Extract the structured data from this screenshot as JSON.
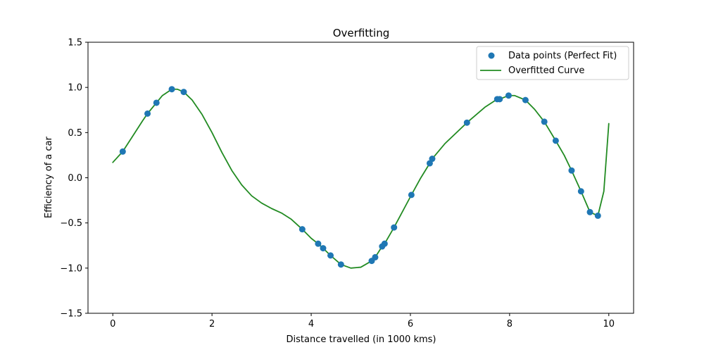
{
  "chart_data": {
    "type": "scatter",
    "title": "Overfitting",
    "xlabel": "Distance travelled (in 1000 kms)",
    "ylabel": "Efficiency of a car",
    "xlim": [
      -0.5,
      10.5
    ],
    "ylim": [
      -1.5,
      1.5
    ],
    "xticks": [
      0,
      2,
      4,
      6,
      8,
      10
    ],
    "xtick_labels": [
      "0",
      "2",
      "4",
      "6",
      "8",
      "10"
    ],
    "yticks": [
      -1.5,
      -1.0,
      -0.5,
      0.0,
      0.5,
      1.0,
      1.5
    ],
    "ytick_labels": [
      "−1.5",
      "−1.0",
      "−0.5",
      "0.0",
      "0.5",
      "1.0",
      "1.5"
    ],
    "grid": false,
    "legend_position": "top-right",
    "series": [
      {
        "name": "Data points (Perfect Fit)",
        "kind": "scatter",
        "color": "#1f77b4",
        "points": [
          [
            0.2,
            0.29
          ],
          [
            0.7,
            0.71
          ],
          [
            0.88,
            0.83
          ],
          [
            1.19,
            0.98
          ],
          [
            1.43,
            0.95
          ],
          [
            3.82,
            -0.57
          ],
          [
            4.14,
            -0.73
          ],
          [
            4.24,
            -0.78
          ],
          [
            4.39,
            -0.86
          ],
          [
            4.6,
            -0.96
          ],
          [
            5.22,
            -0.92
          ],
          [
            5.29,
            -0.88
          ],
          [
            5.43,
            -0.76
          ],
          [
            5.48,
            -0.73
          ],
          [
            5.67,
            -0.55
          ],
          [
            6.02,
            -0.19
          ],
          [
            6.39,
            0.16
          ],
          [
            6.44,
            0.21
          ],
          [
            7.14,
            0.61
          ],
          [
            7.75,
            0.87
          ],
          [
            7.8,
            0.87
          ],
          [
            7.98,
            0.91
          ],
          [
            8.32,
            0.86
          ],
          [
            8.7,
            0.62
          ],
          [
            8.93,
            0.41
          ],
          [
            9.25,
            0.08
          ],
          [
            9.44,
            -0.15
          ],
          [
            9.62,
            -0.38
          ],
          [
            9.78,
            -0.42
          ]
        ]
      },
      {
        "name": "Overfitted Curve",
        "kind": "line",
        "color": "#228b22",
        "points": [
          [
            0.0,
            0.17
          ],
          [
            0.2,
            0.29
          ],
          [
            0.4,
            0.46
          ],
          [
            0.6,
            0.63
          ],
          [
            0.7,
            0.71
          ],
          [
            0.88,
            0.83
          ],
          [
            1.0,
            0.91
          ],
          [
            1.19,
            0.98
          ],
          [
            1.3,
            0.98
          ],
          [
            1.43,
            0.95
          ],
          [
            1.6,
            0.86
          ],
          [
            1.8,
            0.7
          ],
          [
            2.0,
            0.5
          ],
          [
            2.2,
            0.28
          ],
          [
            2.4,
            0.08
          ],
          [
            2.6,
            -0.08
          ],
          [
            2.8,
            -0.2
          ],
          [
            3.0,
            -0.28
          ],
          [
            3.2,
            -0.34
          ],
          [
            3.4,
            -0.39
          ],
          [
            3.6,
            -0.46
          ],
          [
            3.82,
            -0.57
          ],
          [
            4.0,
            -0.67
          ],
          [
            4.14,
            -0.73
          ],
          [
            4.24,
            -0.78
          ],
          [
            4.39,
            -0.86
          ],
          [
            4.6,
            -0.96
          ],
          [
            4.8,
            -1.0
          ],
          [
            5.0,
            -0.99
          ],
          [
            5.22,
            -0.92
          ],
          [
            5.29,
            -0.88
          ],
          [
            5.43,
            -0.76
          ],
          [
            5.48,
            -0.73
          ],
          [
            5.67,
            -0.55
          ],
          [
            6.02,
            -0.19
          ],
          [
            6.2,
            -0.01
          ],
          [
            6.39,
            0.16
          ],
          [
            6.44,
            0.21
          ],
          [
            6.7,
            0.38
          ],
          [
            7.14,
            0.61
          ],
          [
            7.5,
            0.78
          ],
          [
            7.75,
            0.87
          ],
          [
            7.8,
            0.87
          ],
          [
            7.98,
            0.91
          ],
          [
            8.1,
            0.91
          ],
          [
            8.32,
            0.86
          ],
          [
            8.5,
            0.76
          ],
          [
            8.7,
            0.62
          ],
          [
            8.93,
            0.41
          ],
          [
            9.1,
            0.25
          ],
          [
            9.25,
            0.08
          ],
          [
            9.44,
            -0.15
          ],
          [
            9.62,
            -0.38
          ],
          [
            9.78,
            -0.42
          ],
          [
            9.9,
            -0.15
          ],
          [
            10.0,
            0.6
          ]
        ]
      }
    ]
  }
}
